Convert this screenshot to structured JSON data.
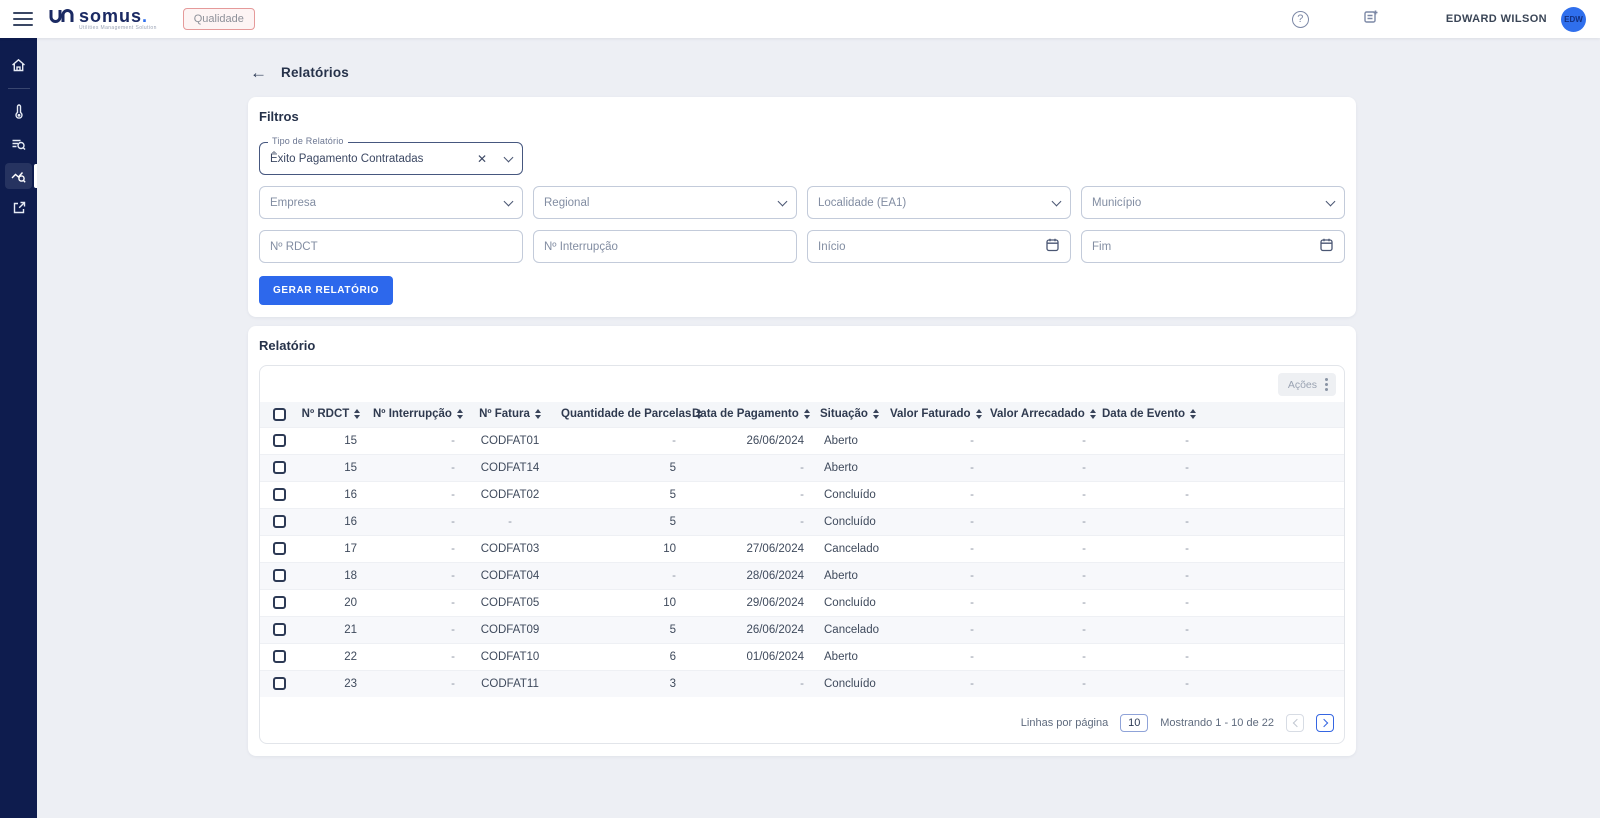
{
  "colors": {
    "accent_blue": "#2d68ec",
    "sidebar_navy": "#0e1c4e",
    "badge_red_border": "#e59a9a",
    "avatar_blue": "#2f6fed"
  },
  "header": {
    "brand": "somus",
    "brand_dot": ".",
    "tagline": "Utilities Management Solution",
    "badge": "Qualidade",
    "user_name": "EDWARD WILSON",
    "user_initials": "EDW",
    "help_glyph": "?"
  },
  "sidebar": {
    "items": [
      {
        "name": "home"
      },
      {
        "name": "thermometer"
      },
      {
        "name": "search-list"
      },
      {
        "name": "report-analytics",
        "active": true
      },
      {
        "name": "external-link"
      }
    ]
  },
  "page": {
    "title": "Relatórios",
    "back_arrow": "←"
  },
  "filters": {
    "title": "Filtros",
    "tipo": {
      "label": "Tipo de Relatório",
      "value": "Êxito Pagamento Contratadas",
      "clear_glyph": "✕"
    },
    "selects": [
      {
        "placeholder": "Empresa"
      },
      {
        "placeholder": "Regional"
      },
      {
        "placeholder": "Localidade (EA1)"
      },
      {
        "placeholder": "Município"
      }
    ],
    "inputs": [
      {
        "placeholder": "Nº RDCT"
      },
      {
        "placeholder": "Nº Interrupção"
      }
    ],
    "dates": [
      {
        "placeholder": "Início"
      },
      {
        "placeholder": "Fim"
      }
    ],
    "submit_label": "GERAR RELATÓRIO"
  },
  "report": {
    "title": "Relatório",
    "actions_label": "Ações",
    "columns": [
      "Nº RDCT",
      "Nº Interrupção",
      "Nº Fatura",
      "Quantidade de Parcelas",
      "Data de Pagamento",
      "Situação",
      "Valor Faturado",
      "Valor Arrecadado",
      "Data de Evento"
    ],
    "rows": [
      [
        "15",
        "-",
        "CODFAT01",
        "-",
        "26/06/2024",
        "Aberto",
        "-",
        "-",
        "-"
      ],
      [
        "15",
        "-",
        "CODFAT14",
        "5",
        "-",
        "Aberto",
        "-",
        "-",
        "-"
      ],
      [
        "16",
        "-",
        "CODFAT02",
        "5",
        "-",
        "Concluído",
        "-",
        "-",
        "-"
      ],
      [
        "16",
        "-",
        "-",
        "5",
        "-",
        "Concluído",
        "-",
        "-",
        "-"
      ],
      [
        "17",
        "-",
        "CODFAT03",
        "10",
        "27/06/2024",
        "Cancelado",
        "-",
        "-",
        "-"
      ],
      [
        "18",
        "-",
        "CODFAT04",
        "-",
        "28/06/2024",
        "Aberto",
        "-",
        "-",
        "-"
      ],
      [
        "20",
        "-",
        "CODFAT05",
        "10",
        "29/06/2024",
        "Concluído",
        "-",
        "-",
        "-"
      ],
      [
        "21",
        "-",
        "CODFAT09",
        "5",
        "26/06/2024",
        "Cancelado",
        "-",
        "-",
        "-"
      ],
      [
        "22",
        "-",
        "CODFAT10",
        "6",
        "01/06/2024",
        "Aberto",
        "-",
        "-",
        "-"
      ],
      [
        "23",
        "-",
        "CODFAT11",
        "3",
        "-",
        "Concluído",
        "-",
        "-",
        "-"
      ]
    ],
    "pagination": {
      "rows_per_page_label": "Linhas por página",
      "rows_per_page": "10",
      "showing": "Mostrando 1 - 10 de 22"
    }
  }
}
